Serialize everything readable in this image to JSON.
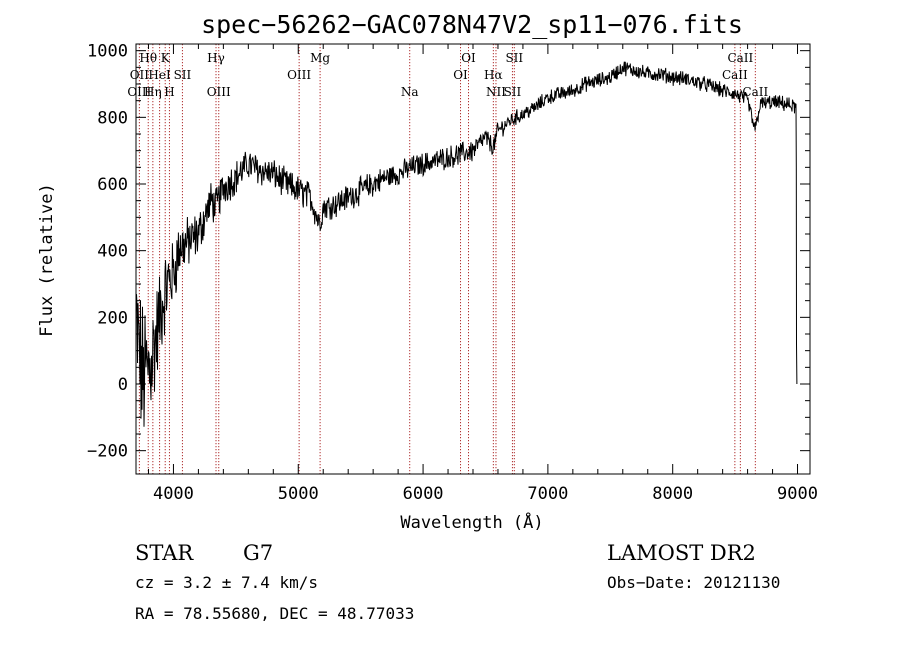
{
  "chart_data": {
    "type": "line",
    "title": "spec−56262−GAC078N47V2_sp11−076.fits",
    "xlabel": "Wavelength (Å)",
    "ylabel": "Flux (relative)",
    "xlim": [
      3700,
      9100
    ],
    "ylim": [
      -270,
      1020
    ],
    "xticks": [
      4000,
      5000,
      6000,
      7000,
      8000,
      9000
    ],
    "xtick_labels": [
      "4000",
      "5000",
      "6000",
      "7000",
      "8000",
      "9000"
    ],
    "yticks": [
      -200,
      0,
      200,
      400,
      600,
      800,
      1000
    ],
    "ytick_labels": [
      "−200",
      "0",
      "200",
      "400",
      "600",
      "800",
      "1000"
    ],
    "grid": false,
    "spectrum_envelope": {
      "x": [
        3700,
        3750,
        3800,
        3850,
        3900,
        3950,
        4000,
        4050,
        4100,
        4200,
        4300,
        4340,
        4400,
        4500,
        4600,
        4700,
        4800,
        4900,
        5000,
        5100,
        5170,
        5200,
        5300,
        5400,
        5500,
        5600,
        5700,
        5800,
        5900,
        6000,
        6100,
        6200,
        6300,
        6400,
        6500,
        6563,
        6600,
        6700,
        6800,
        6900,
        7000,
        7100,
        7200,
        7300,
        7400,
        7500,
        7600,
        7700,
        7800,
        7900,
        8000,
        8100,
        8200,
        8300,
        8400,
        8500,
        8600,
        8660,
        8700,
        8800,
        8900,
        8990
      ],
      "y": [
        180,
        20,
        40,
        120,
        220,
        300,
        330,
        410,
        420,
        450,
        550,
        530,
        590,
        620,
        660,
        640,
        630,
        600,
        580,
        560,
        480,
        530,
        540,
        560,
        580,
        600,
        620,
        630,
        650,
        660,
        670,
        680,
        690,
        700,
        740,
        710,
        760,
        790,
        810,
        830,
        860,
        870,
        880,
        900,
        910,
        920,
        950,
        940,
        930,
        930,
        920,
        915,
        905,
        895,
        880,
        870,
        850,
        760,
        840,
        845,
        840,
        830
      ],
      "noise_amplitude": [
        180,
        200,
        180,
        150,
        120,
        100,
        90,
        80,
        70,
        60,
        50,
        50,
        50,
        45,
        40,
        40,
        40,
        40,
        40,
        40,
        40,
        35,
        35,
        35,
        35,
        35,
        30,
        30,
        30,
        30,
        30,
        30,
        30,
        30,
        25,
        25,
        25,
        20,
        20,
        20,
        20,
        20,
        20,
        20,
        20,
        20,
        20,
        20,
        20,
        20,
        20,
        20,
        20,
        20,
        20,
        20,
        20,
        20,
        20,
        20,
        20,
        20
      ]
    },
    "spectral_lines": [
      {
        "label": "Hθ",
        "x": 3798,
        "row": 0
      },
      {
        "label": "K",
        "x": 3934,
        "row": 0
      },
      {
        "label": "Hγ",
        "x": 4341,
        "row": 0
      },
      {
        "label": "Mg",
        "x": 5175,
        "row": 0
      },
      {
        "label": "OI",
        "x": 6364,
        "row": 0
      },
      {
        "label": "SII",
        "x": 6731,
        "row": 0
      },
      {
        "label": "CaII",
        "x": 8542,
        "row": 0
      },
      {
        "label": "OII",
        "x": 3727,
        "row": 1
      },
      {
        "label": "HeI",
        "x": 3889,
        "row": 1
      },
      {
        "label": "SII",
        "x": 4072,
        "row": 1
      },
      {
        "label": "OIII",
        "x": 5007,
        "row": 1
      },
      {
        "label": "OI",
        "x": 6300,
        "row": 1
      },
      {
        "label": "Hα",
        "x": 6563,
        "row": 1
      },
      {
        "label": "CaII",
        "x": 8498,
        "row": 1
      },
      {
        "label": "OIII",
        "x": 3727,
        "row": 2
      },
      {
        "label": "Hη",
        "x": 3835,
        "row": 2
      },
      {
        "label": "H",
        "x": 3968,
        "row": 2
      },
      {
        "label": "OIII",
        "x": 4363,
        "row": 2
      },
      {
        "label": "Na",
        "x": 5893,
        "row": 2
      },
      {
        "label": "NII",
        "x": 6584,
        "row": 2
      },
      {
        "label": "SII",
        "x": 6716,
        "row": 2
      },
      {
        "label": "CaII",
        "x": 8662,
        "row": 2
      }
    ]
  },
  "info": {
    "class": "STAR",
    "subclass": "G7",
    "survey": "LAMOST DR2",
    "cz": "cz = 3.2 ± 7.4 km/s",
    "obs_date": "Obs−Date: 20121130",
    "radec": "RA =  78.55680, DEC =  48.77033"
  },
  "colors": {
    "spectrum": "#000000",
    "line_marker": "#b03030",
    "axes": "#000000"
  }
}
